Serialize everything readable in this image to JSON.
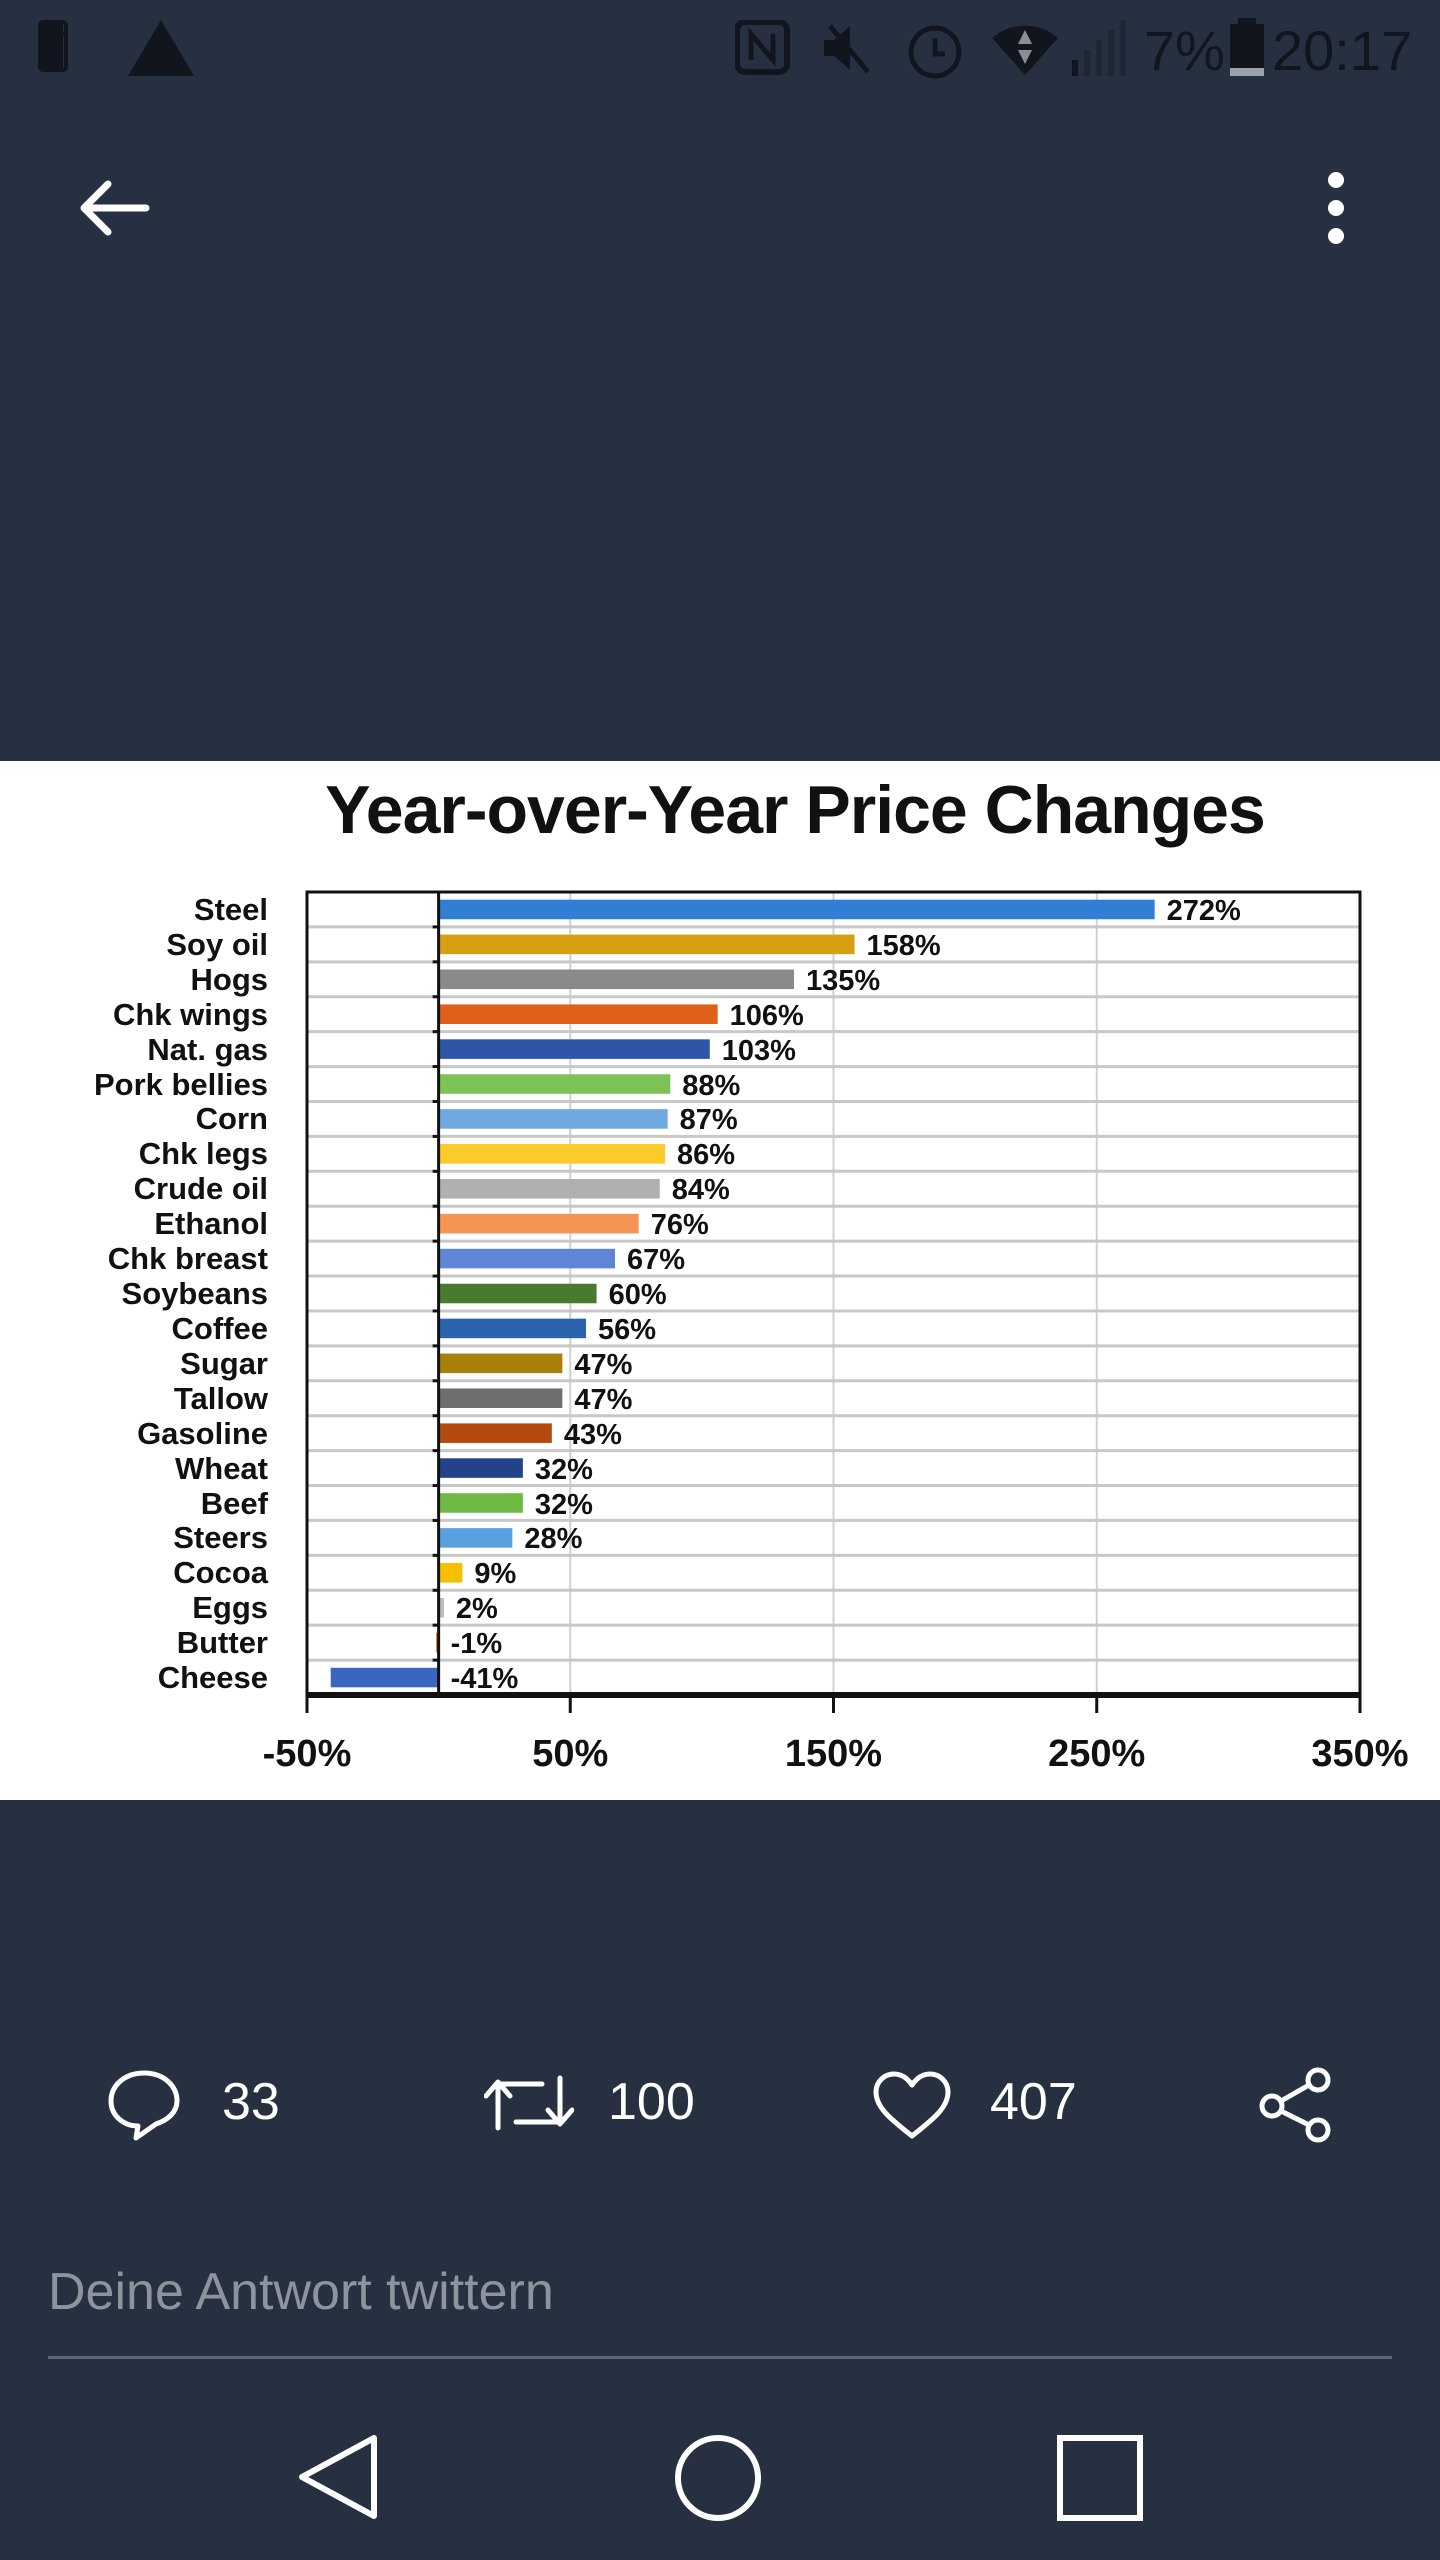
{
  "status_bar": {
    "battery": "7%",
    "time": "20:17"
  },
  "chart_data": {
    "type": "bar",
    "orientation": "horizontal",
    "title": "Year-over-Year Price Changes",
    "categories": [
      "Steel",
      "Soy oil",
      "Hogs",
      "Chk wings",
      "Nat. gas",
      "Pork bellies",
      "Corn",
      "Chk legs",
      "Crude oil",
      "Ethanol",
      "Chk breast",
      "Soybeans",
      "Coffee",
      "Sugar",
      "Tallow",
      "Gasoline",
      "Wheat",
      "Beef",
      "Steers",
      "Cocoa",
      "Eggs",
      "Butter",
      "Cheese"
    ],
    "values": [
      272,
      158,
      135,
      106,
      103,
      88,
      87,
      86,
      84,
      76,
      67,
      60,
      56,
      47,
      47,
      43,
      32,
      32,
      28,
      9,
      2,
      -1,
      -41
    ],
    "labels": [
      "272%",
      "158%",
      "135%",
      "106%",
      "103%",
      "88%",
      "87%",
      "86%",
      "84%",
      "76%",
      "67%",
      "60%",
      "56%",
      "47%",
      "47%",
      "43%",
      "32%",
      "32%",
      "28%",
      "9%",
      "2%",
      "-1%",
      "-41%"
    ],
    "colors": [
      "#2f7fd6",
      "#d6a012",
      "#8a8a8a",
      "#e0601a",
      "#2d55a8",
      "#7cc257",
      "#6fa8e0",
      "#fccb2a",
      "#b0b0b0",
      "#f59455",
      "#5f86d6",
      "#4a7a30",
      "#2b63ad",
      "#a9800a",
      "#6e6e6e",
      "#b44a10",
      "#24428a",
      "#6eb844",
      "#5aa0e0",
      "#f6c000",
      "#bbbbbb",
      "#d08a4a",
      "#3a66c0"
    ],
    "xlim": [
      -50,
      350
    ],
    "xticks": [
      "-50%",
      "50%",
      "150%",
      "250%",
      "350%"
    ],
    "xtick_values": [
      -50,
      50,
      150,
      250,
      350
    ],
    "grid": true
  },
  "actions": {
    "replies": "33",
    "retweets": "100",
    "likes": "407"
  },
  "reply": {
    "placeholder": "Deine Antwort twittern"
  }
}
